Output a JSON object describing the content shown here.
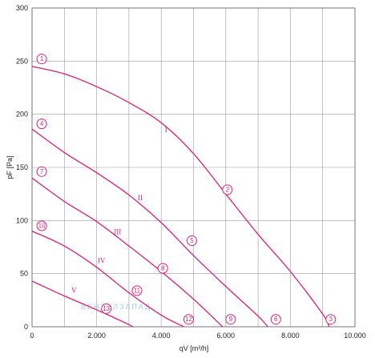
{
  "chart_data": {
    "type": "line",
    "xlabel": "qV [m³/h]",
    "ylabel": "pF [Pa]",
    "xlim": [
      0,
      10000
    ],
    "ylim": [
      0,
      300
    ],
    "x_ticks": [
      0,
      2000,
      4000,
      6000,
      8000,
      10000
    ],
    "x_tick_labels": [
      "0",
      "2.000",
      "4.000",
      "6.000",
      "8.000",
      "10.000"
    ],
    "y_ticks": [
      0,
      50,
      100,
      150,
      200,
      250,
      300
    ],
    "y_tick_labels": [
      "0",
      "50",
      "100",
      "150",
      "200",
      "250",
      "300"
    ],
    "grid": true,
    "series": [
      {
        "name": "I",
        "x": [
          0,
          1000,
          2000,
          3000,
          4000,
          5000,
          6000,
          7000,
          8000,
          9000,
          9200
        ],
        "y": [
          245,
          238,
          226,
          211,
          192,
          163,
          125,
          87,
          52,
          12,
          0
        ]
      },
      {
        "name": "II",
        "x": [
          0,
          1000,
          2000,
          3000,
          4000,
          5000,
          6000,
          7000,
          7300
        ],
        "y": [
          186,
          164,
          145,
          124,
          98,
          67,
          38,
          10,
          0
        ]
      },
      {
        "name": "III",
        "x": [
          0,
          1000,
          2000,
          3000,
          4000,
          5000,
          5900
        ],
        "y": [
          140,
          118,
          99,
          76,
          52,
          26,
          0
        ]
      },
      {
        "name": "IV",
        "x": [
          0,
          1000,
          2000,
          3000,
          4000,
          4700
        ],
        "y": [
          90,
          76,
          56,
          32,
          11,
          0
        ]
      },
      {
        "name": "V",
        "x": [
          0,
          1000,
          2000,
          3000,
          3100
        ],
        "y": [
          43,
          29,
          16,
          2,
          0
        ]
      }
    ],
    "markers": [
      {
        "label": "1",
        "x": 300,
        "y": 252
      },
      {
        "label": "2",
        "x": 6050,
        "y": 129
      },
      {
        "label": "3",
        "x": 9250,
        "y": 7
      },
      {
        "label": "4",
        "x": 300,
        "y": 191
      },
      {
        "label": "5",
        "x": 4950,
        "y": 81
      },
      {
        "label": "6",
        "x": 7550,
        "y": 7
      },
      {
        "label": "7",
        "x": 300,
        "y": 146
      },
      {
        "label": "8",
        "x": 4050,
        "y": 55
      },
      {
        "label": "9",
        "x": 6150,
        "y": 7
      },
      {
        "label": "10",
        "x": 300,
        "y": 95
      },
      {
        "label": "11",
        "x": 3250,
        "y": 34
      },
      {
        "label": "12",
        "x": 4850,
        "y": 7
      },
      {
        "label": "13",
        "x": 2300,
        "y": 17
      }
    ],
    "curve_labels": [
      {
        "label": "I",
        "x": 4150,
        "y": 183
      },
      {
        "label": "II",
        "x": 3350,
        "y": 119
      },
      {
        "label": "III",
        "x": 2650,
        "y": 87
      },
      {
        "label": "IV",
        "x": 2150,
        "y": 60
      },
      {
        "label": "V",
        "x": 1300,
        "y": 32
      }
    ],
    "watermark": "ВЕНТЭЛЗАПАД"
  },
  "colors": {
    "curve": "#dc1e78",
    "grid": "#9c9c9c",
    "text": "#222222",
    "watermark": "#aac8e0"
  }
}
